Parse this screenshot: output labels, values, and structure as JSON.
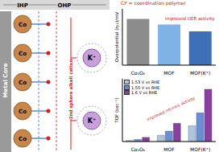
{
  "diagram": {
    "header": {
      "left": "IHP",
      "right": "OHP"
    },
    "core": "Metal Core",
    "atoms": [
      "Co",
      "Co",
      "Co",
      "Co",
      "Co"
    ],
    "cations": [
      "K⁺",
      "K⁺"
    ],
    "annotation": "2nd sphere alkali cation"
  },
  "chart_data": [
    {
      "type": "bar",
      "ylabel": "Overpotential (η₁₀)/mV",
      "categories": [
        "Co₃O₄",
        "MOF",
        "MOF(K⁺)"
      ],
      "values": [
        410,
        360,
        300
      ],
      "colors": [
        "#8c8c8c",
        "#7fb2e5",
        "#3f6fb5"
      ],
      "ylim": [
        0,
        500
      ],
      "tick_labels": "x",
      "annotations": [
        "CP = coordination polymer",
        "improved OER activity"
      ]
    },
    {
      "type": "bar",
      "ylabel": "TOF (sec⁻¹)",
      "categories": [
        "Co₃O₄",
        "MOF",
        "MOF(K⁺)"
      ],
      "series": [
        {
          "name": "1.53 V vs RHE",
          "color": "#b0c4de",
          "values": [
            0.002,
            0.012,
            0.03
          ]
        },
        {
          "name": "1.55 V vs RHE",
          "color": "#6a8fd0",
          "values": [
            0.004,
            0.02,
            0.055
          ]
        },
        {
          "name": "1.6 V vs RHE",
          "color": "#8a3fa0",
          "values": [
            0.008,
            0.035,
            0.1
          ]
        }
      ],
      "ylim": [
        0,
        0.12
      ],
      "tick_labels": "x",
      "legend": "upper left",
      "annotations": [
        "improved intrinsic activity"
      ]
    }
  ]
}
